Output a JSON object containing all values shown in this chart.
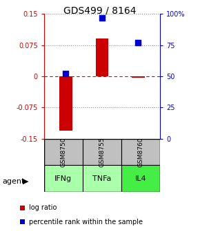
{
  "title": "GDS499 / 8164",
  "samples": [
    "GSM8750",
    "GSM8755",
    "GSM8760"
  ],
  "agents": [
    "IFNg",
    "TNFa",
    "IL4"
  ],
  "log_ratios": [
    -0.13,
    0.09,
    -0.003
  ],
  "percentile_ranks": [
    52,
    97,
    77
  ],
  "ylim_left": [
    -0.15,
    0.15
  ],
  "ylim_right": [
    0,
    100
  ],
  "yticks_left": [
    -0.15,
    -0.075,
    0,
    0.075,
    0.15
  ],
  "ytick_labels_left": [
    "-0.15",
    "-0.075",
    "0",
    "0.075",
    "0.15"
  ],
  "yticks_right": [
    0,
    25,
    50,
    75,
    100
  ],
  "ytick_labels_right": [
    "0",
    "25",
    "50",
    "75",
    "100%"
  ],
  "bar_color": "#cc0000",
  "dot_color": "#0000cc",
  "left_axis_color": "#cc0000",
  "right_axis_color": "#0000cc",
  "grid_color": "#888888",
  "grid_color_zero": "#cc0000",
  "sample_bg_color": "#c0c0c0",
  "agent_bg_colors": [
    "#aaffaa",
    "#aaffaa",
    "#44ee44"
  ],
  "bar_width": 0.35,
  "dot_size": 30,
  "title_fontsize": 10,
  "tick_fontsize": 7,
  "label_fontsize": 8,
  "legend_fontsize": 7
}
